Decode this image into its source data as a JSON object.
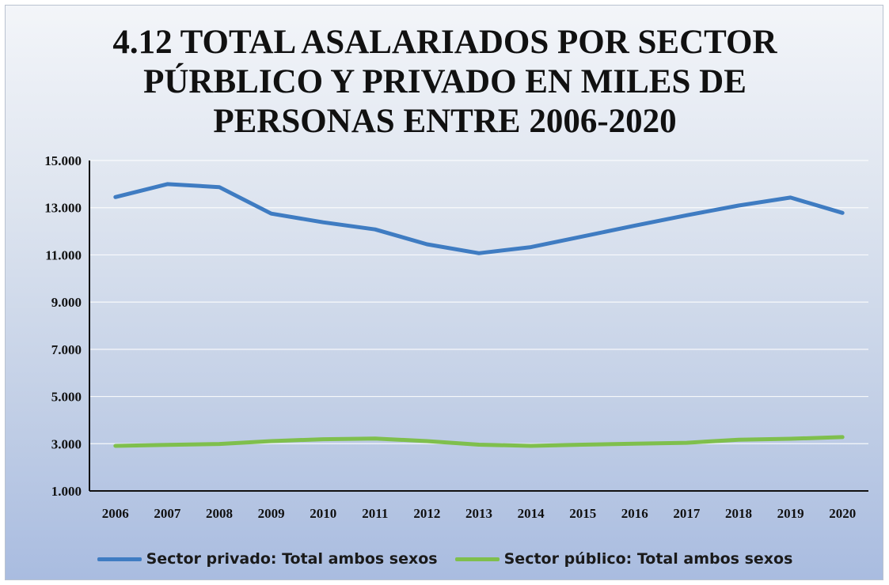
{
  "chart_data": {
    "type": "line",
    "title_lines": [
      "4.12  TOTAL ASALARIADOS POR SECTOR",
      "PÚRBLICO Y PRIVADO EN MILES DE",
      "PERSONAS ENTRE 2006-2020"
    ],
    "xlabel": "",
    "ylabel": "",
    "categories": [
      "2006",
      "2007",
      "2008",
      "2009",
      "2010",
      "2011",
      "2012",
      "2013",
      "2014",
      "2015",
      "2016",
      "2017",
      "2018",
      "2019",
      "2020"
    ],
    "ylim": [
      1000,
      15000
    ],
    "yticks": [
      1000,
      3000,
      5000,
      7000,
      9000,
      11000,
      13000,
      15000
    ],
    "ytick_labels": [
      "1.000",
      "3.000",
      "5.000",
      "7.000",
      "9.000",
      "11.000",
      "13.000",
      "15.000"
    ],
    "grid": true,
    "legend_position": "bottom",
    "series": [
      {
        "name": "Sector privado: Total ambos sexos",
        "color": "#3f7cc2",
        "values": [
          13450,
          14000,
          13870,
          12750,
          12380,
          12080,
          11450,
          11070,
          11330,
          11780,
          12240,
          12680,
          13090,
          13430,
          12780
        ]
      },
      {
        "name": "Sector público: Total ambos sexos",
        "color": "#7fbf4d",
        "values": [
          2910,
          2950,
          2990,
          3110,
          3190,
          3220,
          3110,
          2960,
          2910,
          2960,
          3000,
          3040,
          3170,
          3210,
          3280
        ]
      }
    ]
  }
}
